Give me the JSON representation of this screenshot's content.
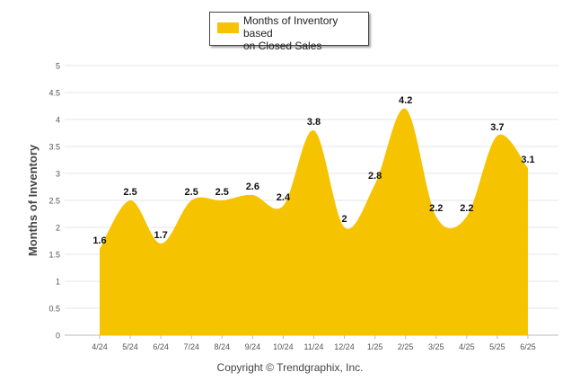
{
  "chart_data": {
    "type": "area",
    "categories": [
      "4/24",
      "5/24",
      "6/24",
      "7/24",
      "8/24",
      "9/24",
      "10/24",
      "11/24",
      "12/24",
      "1/25",
      "2/25",
      "3/25",
      "4/25",
      "5/25",
      "6/25"
    ],
    "series": [
      {
        "name": "Months of Inventory based on Closed Sales",
        "values": [
          1.6,
          2.5,
          1.7,
          2.5,
          2.5,
          2.6,
          2.4,
          3.8,
          2,
          2.8,
          4.2,
          2.2,
          2.2,
          3.7,
          3.1
        ],
        "labels": [
          "1.6",
          "2.5",
          "1.7",
          "2.5",
          "2.5",
          "2.6",
          "2.4",
          "3.8",
          "2",
          "2.8",
          "4.2",
          "2.2",
          "2.2",
          "3.7",
          "3.1"
        ],
        "color": "#F5C300"
      }
    ],
    "ylabel": "Months of Inventory",
    "xlabel": "",
    "ylim": [
      0,
      5
    ],
    "yticks": [
      "0",
      "0.5",
      "1",
      "1.5",
      "2",
      "2.5",
      "3",
      "3.5",
      "4",
      "4.5",
      "5"
    ],
    "grid": true,
    "legend_position": "top-center"
  },
  "legend": {
    "label_line1": "Months of Inventory based",
    "label_line2": "on Closed Sales"
  },
  "footer": {
    "copyright": "Copyright © Trendgraphix, Inc."
  }
}
